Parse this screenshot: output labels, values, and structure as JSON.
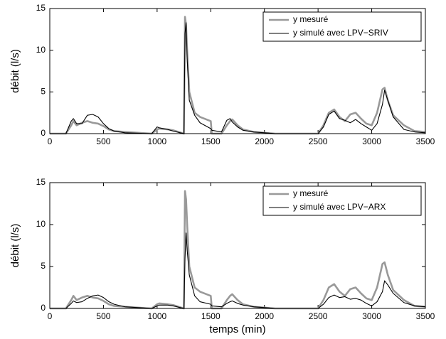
{
  "chart_data": [
    {
      "type": "line",
      "y_label": "débit (l/s)",
      "x": [
        0,
        150,
        200,
        220,
        250,
        300,
        350,
        400,
        450,
        500,
        550,
        600,
        700,
        950,
        1000,
        1020,
        1100,
        1150,
        1250,
        1260,
        1270,
        1280,
        1300,
        1350,
        1400,
        1500,
        1510,
        1600,
        1650,
        1680,
        1700,
        1750,
        1800,
        1900,
        2000,
        2100,
        2500,
        2550,
        2600,
        2650,
        2700,
        2750,
        2800,
        2850,
        2900,
        2950,
        3000,
        3050,
        3100,
        3120,
        3150,
        3200,
        3300,
        3400,
        3500
      ],
      "series": [
        {
          "name": "y mesuré",
          "color": "#999999",
          "values": [
            0,
            0,
            1.0,
            1.5,
            1.0,
            1.3,
            1.5,
            1.3,
            1.2,
            0.9,
            0.5,
            0.3,
            0.2,
            0,
            0.5,
            0.6,
            0.5,
            0.4,
            0,
            14,
            13,
            10,
            5,
            2.5,
            2.0,
            1.5,
            0,
            0,
            1.0,
            1.5,
            1.7,
            1.0,
            0.5,
            0.2,
            0.1,
            0,
            0,
            1,
            2.5,
            2.9,
            2.0,
            1.5,
            2.3,
            2.5,
            1.8,
            1.2,
            1.0,
            2.5,
            5.3,
            5.5,
            4.0,
            2.2,
            1.0,
            0.3,
            0.2
          ]
        },
        {
          "name": "y simulé avec LPV−SRIV",
          "color": "#000000",
          "values": [
            0,
            0,
            1.5,
            1.8,
            1.2,
            1.2,
            2.2,
            2.3,
            2.0,
            1.2,
            0.6,
            0.3,
            0.1,
            0,
            0.8,
            0.7,
            0.5,
            0.3,
            0,
            12,
            13.3,
            9,
            4,
            2.2,
            1.3,
            0.6,
            0.4,
            0.2,
            1.6,
            1.8,
            1.4,
            0.8,
            0.4,
            0.2,
            0.1,
            0,
            0,
            0.8,
            2.3,
            2.7,
            1.8,
            1.6,
            1.3,
            1.7,
            1.2,
            0.8,
            0.4,
            1.2,
            3.5,
            5.2,
            4.0,
            2.0,
            0.5,
            0.2,
            0.1
          ]
        }
      ],
      "xlim": [
        0,
        3500
      ],
      "xticks": [
        0,
        500,
        1000,
        1500,
        2000,
        2500,
        3000,
        3500
      ],
      "ylim": [
        0,
        15
      ],
      "yticks": [
        0,
        5,
        10,
        15
      ],
      "legend": "upper right"
    },
    {
      "type": "line",
      "x_label": "temps (min)",
      "y_label": "débit (l/s)",
      "x": [
        0,
        150,
        200,
        220,
        250,
        300,
        350,
        400,
        450,
        500,
        550,
        600,
        700,
        950,
        1000,
        1020,
        1100,
        1150,
        1250,
        1260,
        1270,
        1280,
        1300,
        1350,
        1400,
        1500,
        1510,
        1600,
        1650,
        1680,
        1700,
        1750,
        1800,
        1900,
        2000,
        2100,
        2500,
        2550,
        2600,
        2650,
        2700,
        2750,
        2800,
        2850,
        2900,
        2950,
        3000,
        3050,
        3100,
        3120,
        3150,
        3200,
        3300,
        3400,
        3500
      ],
      "series": [
        {
          "name": "y mesuré",
          "color": "#999999",
          "values": [
            0,
            0,
            1.0,
            1.5,
            1.0,
            1.3,
            1.5,
            1.3,
            1.2,
            0.9,
            0.5,
            0.3,
            0.2,
            0,
            0.5,
            0.6,
            0.5,
            0.4,
            0,
            14,
            13,
            10,
            5,
            2.5,
            2.0,
            1.5,
            0,
            0,
            1.0,
            1.5,
            1.7,
            1.0,
            0.5,
            0.2,
            0.1,
            0,
            0,
            1,
            2.5,
            2.9,
            2.0,
            1.5,
            2.3,
            2.5,
            1.8,
            1.2,
            1.0,
            2.5,
            5.3,
            5.5,
            4.0,
            2.2,
            1.0,
            0.3,
            0.2
          ]
        },
        {
          "name": "y simulé avec LPV−ARX",
          "color": "#000000",
          "values": [
            0,
            0,
            0.6,
            0.9,
            0.7,
            0.8,
            1.2,
            1.5,
            1.6,
            1.3,
            0.8,
            0.5,
            0.2,
            0,
            0.3,
            0.4,
            0.4,
            0.3,
            0,
            6,
            9,
            7,
            4,
            1.5,
            0.8,
            0.5,
            0.3,
            0.2,
            0.6,
            0.8,
            0.9,
            0.6,
            0.4,
            0.2,
            0.1,
            0,
            0,
            0.5,
            1.3,
            1.6,
            1.3,
            1.4,
            1.1,
            1.2,
            1.0,
            0.6,
            0.3,
            0.8,
            2.0,
            3.3,
            2.8,
            1.8,
            0.7,
            0.3,
            0.2
          ]
        }
      ],
      "xlim": [
        0,
        3500
      ],
      "xticks": [
        0,
        500,
        1000,
        1500,
        2000,
        2500,
        3000,
        3500
      ],
      "ylim": [
        0,
        15
      ],
      "yticks": [
        0,
        5,
        10,
        15
      ],
      "legend": "upper right"
    }
  ]
}
